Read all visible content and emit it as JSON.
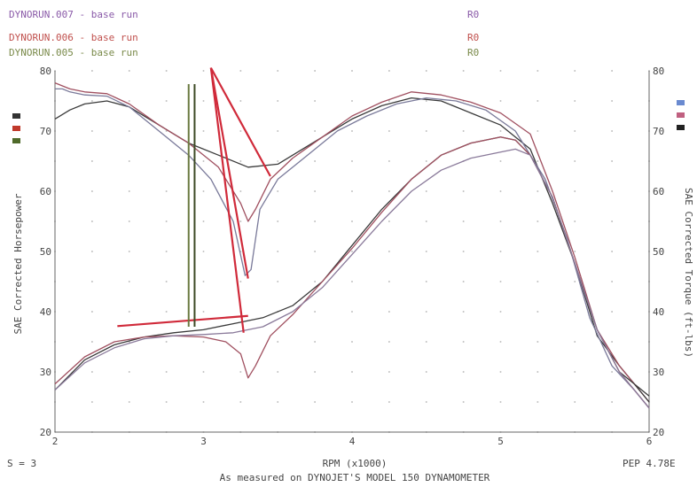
{
  "legend": {
    "runs": [
      {
        "label": "DYNORUN.007 - base run",
        "tag": "R0",
        "color": "#8a5aa8"
      },
      {
        "label": "DYNORUN.006 - base run",
        "tag": "R0",
        "color": "#c0504d"
      },
      {
        "label": "DYNORUN.005 - base run",
        "tag": "R0",
        "color": "#7a8a4a"
      }
    ]
  },
  "footer": {
    "smoothing": "S = 3",
    "caption": "As measured on DYNOJET'S MODEL 150 DYNAMOMETER",
    "pep": "PEP 4.78E"
  },
  "chart_data": {
    "type": "line",
    "xlabel": "RPM (x1000)",
    "ylabel_left": "SAE Corrected Horsepower",
    "ylabel_right": "SAE Corrected Torque (ft-lbs)",
    "xlim": [
      2,
      6
    ],
    "ylim_left": [
      20,
      80
    ],
    "ylim_right": [
      20,
      80
    ],
    "x_ticks": [
      "2",
      "3",
      "4",
      "5",
      "6"
    ],
    "y_ticks_left": [
      "20",
      "30",
      "40",
      "50",
      "60",
      "70",
      "80"
    ],
    "y_ticks_right": [
      "20",
      "30",
      "40",
      "50",
      "60",
      "70",
      "80"
    ],
    "grid": "dotted",
    "series": [
      {
        "quantity": "torque",
        "run": "DYNORUN.007",
        "color": "#3a3a3a",
        "x": [
          2.0,
          2.1,
          2.2,
          2.35,
          2.5,
          2.7,
          2.9,
          3.1,
          3.3,
          3.5,
          3.8,
          4.0,
          4.2,
          4.4,
          4.6,
          4.8,
          5.0,
          5.2,
          5.35,
          5.5,
          5.65,
          5.8,
          5.9,
          6.0
        ],
        "y": [
          72,
          73.5,
          74.5,
          75,
          74,
          71,
          68,
          66,
          64,
          64.5,
          69,
          72,
          74.2,
          75.5,
          75,
          73,
          71,
          67,
          58,
          48,
          36,
          31,
          28,
          26
        ]
      },
      {
        "quantity": "torque",
        "run": "DYNORUN.006",
        "color": "#a05060",
        "x": [
          2.0,
          2.05,
          2.1,
          2.2,
          2.35,
          2.5,
          2.7,
          2.9,
          3.1,
          3.25,
          3.3,
          3.35,
          3.45,
          3.6,
          3.8,
          4.0,
          4.2,
          4.4,
          4.6,
          4.8,
          5.0,
          5.2,
          5.35,
          5.5,
          5.65,
          5.8,
          5.9,
          6.0
        ],
        "y": [
          78,
          77.5,
          77,
          76.5,
          76.2,
          74.5,
          71,
          68,
          64,
          58,
          55,
          57,
          62,
          65.5,
          69,
          72.5,
          74.8,
          76.5,
          76,
          74.8,
          73,
          69.5,
          60,
          49,
          37,
          31,
          28,
          25
        ]
      },
      {
        "quantity": "torque",
        "run": "DYNORUN.005",
        "color": "#7a7a9a",
        "x": [
          2.0,
          2.05,
          2.1,
          2.2,
          2.35,
          2.5,
          2.7,
          2.9,
          3.05,
          3.2,
          3.28,
          3.32,
          3.38,
          3.5,
          3.7,
          3.9,
          4.1,
          4.3,
          4.5,
          4.7,
          4.9,
          5.1,
          5.3,
          5.45,
          5.6,
          5.75,
          5.9,
          6.0
        ],
        "y": [
          77,
          77,
          76.5,
          76,
          75.8,
          74,
          70,
          66,
          62,
          55,
          46,
          47,
          57,
          62,
          66,
          70,
          72.5,
          74.5,
          75.5,
          75,
          73.5,
          70,
          62,
          52,
          39,
          31,
          27,
          24
        ]
      },
      {
        "quantity": "horsepower",
        "run": "DYNORUN.007",
        "color": "#3a3a3a",
        "x": [
          2.0,
          2.2,
          2.4,
          2.6,
          2.8,
          3.0,
          3.2,
          3.4,
          3.6,
          3.8,
          4.0,
          4.2,
          4.4,
          4.6,
          4.8,
          5.0,
          5.1,
          5.2,
          5.35,
          5.5,
          5.65,
          5.8,
          5.9,
          6.0
        ],
        "y": [
          27,
          32,
          34.5,
          35.8,
          36.5,
          37,
          38,
          39,
          41,
          45,
          51,
          57,
          62,
          66,
          68,
          69,
          68.5,
          66,
          59,
          48,
          37,
          30,
          28,
          25
        ]
      },
      {
        "quantity": "horsepower",
        "run": "DYNORUN.006",
        "color": "#a05060",
        "x": [
          2.0,
          2.2,
          2.4,
          2.6,
          2.8,
          3.0,
          3.15,
          3.25,
          3.3,
          3.35,
          3.45,
          3.6,
          3.8,
          4.0,
          4.2,
          4.4,
          4.6,
          4.8,
          5.0,
          5.1,
          5.2,
          5.35,
          5.5,
          5.65,
          5.8,
          5.9,
          6.0
        ],
        "y": [
          28,
          32.5,
          35,
          35.8,
          36,
          35.8,
          35,
          33,
          29,
          31,
          36,
          39.5,
          45,
          50.5,
          56.5,
          62,
          66,
          68,
          69,
          68.5,
          66,
          59,
          48,
          37,
          30,
          27,
          24
        ]
      },
      {
        "quantity": "horsepower",
        "run": "DYNORUN.005",
        "color": "#8a7a9a",
        "x": [
          2.0,
          2.2,
          2.4,
          2.6,
          2.8,
          3.0,
          3.2,
          3.4,
          3.6,
          3.8,
          4.0,
          4.2,
          4.4,
          4.6,
          4.8,
          5.0,
          5.1,
          5.2,
          5.35,
          5.5,
          5.65,
          5.8,
          5.9,
          6.0
        ],
        "y": [
          27,
          31.5,
          34,
          35.5,
          36,
          36.2,
          36.5,
          37.5,
          40,
          44,
          49.5,
          55,
          60,
          63.5,
          65.5,
          66.5,
          67,
          66,
          59,
          48,
          37,
          30,
          27,
          24
        ]
      }
    ],
    "annotations": {
      "red_pointer_lines": [
        {
          "from": [
            3.05,
            80.5
          ],
          "to": [
            3.45,
            62.5
          ]
        },
        {
          "from": [
            3.05,
            80.5
          ],
          "to": [
            3.3,
            45.5
          ]
        },
        {
          "from": [
            3.05,
            80.5
          ],
          "to": [
            3.27,
            36.5
          ]
        },
        {
          "from": [
            2.42,
            37.6
          ],
          "to": [
            3.3,
            39.3
          ]
        }
      ],
      "vertical_markers": [
        {
          "x": 2.9,
          "y_from": 37.5,
          "y_to": 77.8,
          "color": "#6a7a40"
        },
        {
          "x": 2.94,
          "y_from": 37.5,
          "y_to": 77.8,
          "color": "#3d4a25"
        }
      ]
    }
  }
}
